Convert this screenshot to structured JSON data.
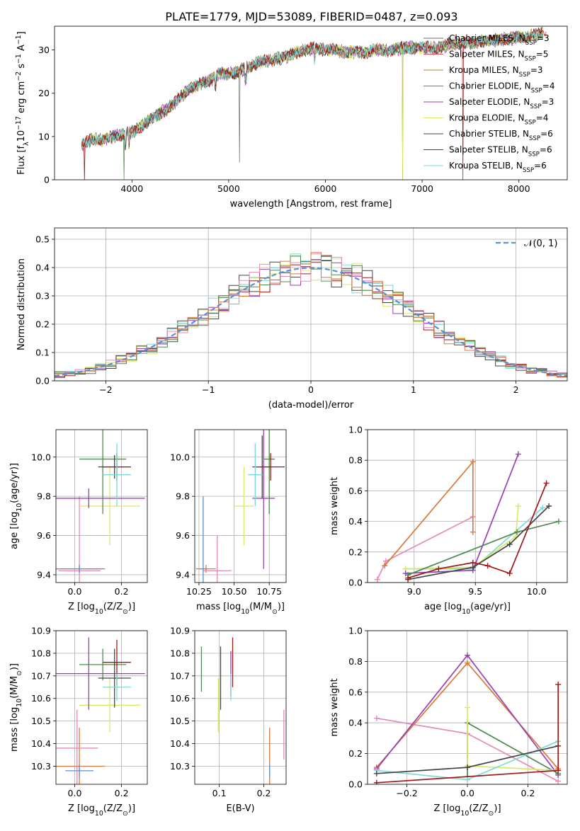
{
  "figure_title": "PLATE=1779, MJD=53089, FIBERID=0487, z=0.093",
  "models": [
    {
      "name": "Chabrier MILES, N$SSP$=3",
      "color": "#6a6a6a"
    },
    {
      "name": "Salpeter MILES, N$SSP$=5",
      "color": "#e0504a"
    },
    {
      "name": "Kroupa MILES, N$SSP$=3",
      "color": "#b08a30"
    },
    {
      "name": "Chabrier ELODIE, N$SSP$=4",
      "color": "#4f8a4f"
    },
    {
      "name": "Salpeter ELODIE, N$SSP$=3",
      "color": "#9a3fb5"
    },
    {
      "name": "Kroupa ELODIE, N$SSP$=4",
      "color": "#d8e86a"
    },
    {
      "name": "Chabrier STELIB, N$SSP$=6",
      "color": "#454545"
    },
    {
      "name": "Salpeter STELIB, N$SSP$=6",
      "color": "#a01818"
    },
    {
      "name": "Kroupa STELIB, N$SSP$=6",
      "color": "#7ed8d8"
    }
  ],
  "chart_data": [
    {
      "id": "spectrum",
      "type": "line",
      "xlabel": "wavelength [Angstrom, rest frame]",
      "ylabel": "Flux [f$λ$10$−17$ erg cm$−2$ s$−1$ A$−1$]",
      "xlim": [
        3200,
        8500
      ],
      "ylim": [
        0,
        35.5
      ],
      "xticks": [
        4000,
        5000,
        6000,
        7000,
        8000
      ],
      "yticks": [
        0,
        10,
        20,
        30
      ],
      "grid": false,
      "legend_position": "bottom-right",
      "anchors_x": [
        3480,
        3600,
        3700,
        3800,
        3900,
        4000,
        4100,
        4200,
        4300,
        4400,
        4500,
        4600,
        4700,
        4800,
        4900,
        5000,
        5100,
        5200,
        5300,
        5400,
        5500,
        5600,
        5700,
        5800,
        5900,
        6000,
        6100,
        6200,
        6300,
        6400,
        6500,
        6600,
        6700,
        6800,
        6900,
        7000,
        7100,
        7200,
        7300,
        7400,
        7500,
        7600,
        7700,
        7800,
        7900,
        8000,
        8100,
        8250
      ],
      "anchors_y": [
        8,
        9.5,
        9,
        10,
        10.5,
        11,
        12.5,
        14,
        15.5,
        17,
        19,
        21,
        22,
        23,
        24.5,
        24.5,
        25,
        26,
        27,
        27.5,
        28,
        28.5,
        29.5,
        30,
        30.5,
        30,
        30,
        29.5,
        29.5,
        29.5,
        30,
        30,
        30,
        30.5,
        30.5,
        30.5,
        30.5,
        30.5,
        31.5,
        31.5,
        31.5,
        32,
        32,
        32.5,
        32.5,
        33,
        33,
        34
      ],
      "dips_x": [
        3510,
        3920,
        6800,
        7420,
        5110
      ]
    },
    {
      "id": "residuals",
      "type": "histogram",
      "xlabel": "(data-model)/error",
      "ylabel": "Normed distribution",
      "xlim": [
        -2.5,
        2.5
      ],
      "ylim": [
        0,
        0.54
      ],
      "xticks": [
        -2,
        -1,
        0,
        1,
        2
      ],
      "yticks": [
        0,
        0.1,
        0.2,
        0.3,
        0.4,
        0.5
      ],
      "bin_width": 0.1,
      "grid": true,
      "legend_position": "top-right",
      "reference_curve": {
        "name": "𝒩(0, 1)",
        "color": "#5b8fd6"
      }
    },
    {
      "id": "age_vs_Z",
      "type": "errorbar",
      "xlabel": "Z [log$10$(Z/Z$⊙$)]",
      "ylabel": "age  [log$10$(age/yr)]",
      "xlim": [
        -0.08,
        0.31
      ],
      "ylim": [
        9.36,
        10.14
      ],
      "xticks": [
        0.0,
        0.2
      ],
      "yticks": [
        9.4,
        9.6,
        9.8,
        10.0
      ],
      "grid": true,
      "points": [
        {
          "x": 0.02,
          "xerr": 0.11,
          "y": 9.43,
          "yerr": 0.02,
          "color": "#d87a3a"
        },
        {
          "x": 0.02,
          "xerr": 0.09,
          "y": 9.42,
          "yerr": 0.38,
          "color": "#e58ab8"
        },
        {
          "x": 0.02,
          "xerr": 0.1,
          "y": 9.43,
          "yerr": 0.02,
          "color": "#5b8fd6"
        },
        {
          "x": 0.15,
          "xerr": 0.13,
          "y": 9.75,
          "yerr": 0.2,
          "color": "#d8e86a"
        },
        {
          "x": 0.06,
          "xerr": 0.24,
          "y": 9.79,
          "yerr": 0.05,
          "color": "#9a3fb5"
        },
        {
          "x": 0.12,
          "xerr": 0.1,
          "y": 9.99,
          "yerr": 0.28,
          "color": "#4f8a4f"
        },
        {
          "x": 0.17,
          "xerr": 0.07,
          "y": 9.95,
          "yerr": 0.06,
          "color": "#454545"
        },
        {
          "x": 0.18,
          "xerr": 0.06,
          "y": 9.95,
          "yerr": 0.07,
          "color": "#a01818"
        },
        {
          "x": 0.18,
          "xerr": 0.06,
          "y": 9.91,
          "yerr": 0.16,
          "color": "#7ed8d8"
        }
      ]
    },
    {
      "id": "age_vs_mass",
      "type": "errorbar",
      "xlabel": "mass [log$10$(M/M$⊙$)]",
      "ylabel": "",
      "xlim": [
        10.22,
        10.87
      ],
      "ylim": [
        9.36,
        10.14
      ],
      "xticks": [
        10.25,
        10.5,
        10.75
      ],
      "yticks": [
        9.4,
        9.6,
        9.8,
        10.0
      ],
      "grid": true,
      "points": [
        {
          "x": 10.3,
          "xerr": 0.07,
          "y": 9.43,
          "yerr": 0.02,
          "color": "#d87a3a"
        },
        {
          "x": 10.38,
          "xerr": 0.1,
          "y": 9.42,
          "yerr": 0.18,
          "color": "#e58ab8"
        },
        {
          "x": 10.28,
          "xerr": 0.03,
          "y": 9.43,
          "yerr": 0.37,
          "color": "#5b8fd6"
        },
        {
          "x": 10.57,
          "xerr": 0.07,
          "y": 9.75,
          "yerr": 0.2,
          "color": "#d8e86a"
        },
        {
          "x": 10.71,
          "xerr": 0.08,
          "y": 9.79,
          "yerr": 0.36,
          "color": "#9a3fb5"
        },
        {
          "x": 10.75,
          "xerr": 0.04,
          "y": 9.99,
          "yerr": 0.28,
          "color": "#4f8a4f"
        },
        {
          "x": 10.7,
          "xerr": 0.07,
          "y": 9.95,
          "yerr": 0.16,
          "color": "#454545"
        },
        {
          "x": 10.76,
          "xerr": 0.1,
          "y": 9.95,
          "yerr": 0.07,
          "color": "#a01818"
        },
        {
          "x": 10.65,
          "xerr": 0.05,
          "y": 9.91,
          "yerr": 0.16,
          "color": "#7ed8d8"
        }
      ]
    },
    {
      "id": "weight_vs_age",
      "type": "line",
      "xlabel": "age  [log$10$(age/yr)]",
      "ylabel": "mass weight",
      "xlim": [
        8.62,
        10.25
      ],
      "ylim": [
        0,
        1.0
      ],
      "xticks": [
        9.0,
        9.5,
        10.0
      ],
      "yticks": [
        0.0,
        0.2,
        0.4,
        0.6,
        0.8,
        1.0
      ],
      "grid": true,
      "series": [
        {
          "color": "#e58ab8",
          "x": [
            8.7,
            8.77,
            9.48
          ],
          "y": [
            0.02,
            0.14,
            0.43
          ]
        },
        {
          "color": "#d87a3a",
          "x": [
            8.76,
            9.48,
            9.48
          ],
          "y": [
            0.11,
            0.79,
            0.33
          ]
        },
        {
          "color": "#7ed8d8",
          "x": [
            8.93,
            9.48,
            10.05
          ],
          "y": [
            0.09,
            0.09,
            0.49
          ]
        },
        {
          "color": "#d8e86a",
          "x": [
            8.93,
            9.48,
            9.83,
            9.85
          ],
          "y": [
            0.09,
            0.1,
            0.3,
            0.5
          ]
        },
        {
          "color": "#9a3fb5",
          "x": [
            8.93,
            9.48,
            9.85
          ],
          "y": [
            0.06,
            0.08,
            0.84
          ]
        },
        {
          "color": "#4f8a4f",
          "x": [
            8.95,
            9.84,
            10.18
          ],
          "y": [
            0.05,
            0.33,
            0.4
          ]
        },
        {
          "color": "#454545",
          "x": [
            8.95,
            9.48,
            9.78,
            10.1
          ],
          "y": [
            0.02,
            0.1,
            0.25,
            0.5
          ]
        },
        {
          "color": "#a01818",
          "x": [
            8.95,
            9.2,
            9.48,
            9.6,
            9.78,
            10.08
          ],
          "y": [
            0.03,
            0.09,
            0.13,
            0.11,
            0.06,
            0.65
          ]
        }
      ]
    },
    {
      "id": "mass_vs_Z",
      "type": "errorbar",
      "xlabel": "Z [log$10$(Z/Z$⊙$)]",
      "ylabel": "mass [log$10$(M/M$⊙$)]",
      "xlim": [
        -0.08,
        0.31
      ],
      "ylim": [
        10.22,
        10.9
      ],
      "xticks": [
        0.0,
        0.2
      ],
      "yticks": [
        10.3,
        10.4,
        10.5,
        10.6,
        10.7,
        10.8,
        10.9
      ],
      "grid": true,
      "points": [
        {
          "x": 0.02,
          "xerr": 0.11,
          "y": 10.3,
          "yerr": 0.17,
          "color": "#d87a3a"
        },
        {
          "x": 0.01,
          "xerr": 0.09,
          "y": 10.38,
          "yerr": 0.17,
          "color": "#e58ab8"
        },
        {
          "x": 0.02,
          "xerr": 0.06,
          "y": 10.28,
          "yerr": 0.03,
          "color": "#5b8fd6"
        },
        {
          "x": 0.15,
          "xerr": 0.13,
          "y": 10.57,
          "yerr": 0.12,
          "color": "#d8e86a"
        },
        {
          "x": 0.06,
          "xerr": 0.24,
          "y": 10.71,
          "yerr": 0.16,
          "color": "#9a3fb5"
        },
        {
          "x": 0.12,
          "xerr": 0.1,
          "y": 10.75,
          "yerr": 0.07,
          "color": "#4f8a4f"
        },
        {
          "x": 0.17,
          "xerr": 0.07,
          "y": 10.69,
          "yerr": 0.13,
          "color": "#454545"
        },
        {
          "x": 0.18,
          "xerr": 0.06,
          "y": 10.76,
          "yerr": 0.1,
          "color": "#a01818"
        },
        {
          "x": 0.18,
          "xerr": 0.06,
          "y": 10.65,
          "yerr": 0.06,
          "color": "#7ed8d8"
        }
      ]
    },
    {
      "id": "mass_vs_EBV",
      "type": "errorbar",
      "xlabel": "E(B-V)",
      "ylabel": "",
      "xlim": [
        0.045,
        0.25
      ],
      "ylim": [
        10.22,
        10.9
      ],
      "xticks": [
        0.1,
        0.2
      ],
      "yticks": [
        10.3,
        10.4,
        10.5,
        10.6,
        10.7,
        10.8,
        10.9
      ],
      "grid": true,
      "points": [
        {
          "x": 0.213,
          "y": 10.3,
          "yerr": 0.17,
          "color": "#d87a3a"
        },
        {
          "x": 0.245,
          "y": 10.44,
          "yerr": 0.11,
          "color": "#e58ab8"
        },
        {
          "x": 0.213,
          "y": 10.28,
          "yerr": 0.03,
          "color": "#5b8fd6"
        },
        {
          "x": 0.098,
          "y": 10.57,
          "yerr": 0.12,
          "color": "#d8e86a"
        },
        {
          "x": 0.126,
          "y": 10.71,
          "yerr": 0.1,
          "color": "#9a3fb5"
        },
        {
          "x": 0.06,
          "y": 10.73,
          "yerr": 0.1,
          "color": "#4f8a4f"
        },
        {
          "x": 0.103,
          "y": 10.69,
          "yerr": 0.14,
          "color": "#454545"
        },
        {
          "x": 0.13,
          "y": 10.76,
          "yerr": 0.11,
          "color": "#a01818"
        },
        {
          "x": 0.126,
          "y": 10.65,
          "yerr": 0.06,
          "color": "#7ed8d8"
        }
      ]
    },
    {
      "id": "weight_vs_Z",
      "type": "line",
      "xlabel": "Z [log$10$(Z/Z$⊙$)]",
      "ylabel": "mass weight",
      "xlim": [
        -0.33,
        0.33
      ],
      "ylim": [
        0,
        1.0
      ],
      "xticks": [
        -0.2,
        0.0,
        0.2
      ],
      "yticks": [
        0.0,
        0.2,
        0.4,
        0.6,
        0.8,
        1.0
      ],
      "grid": true,
      "series": [
        {
          "color": "#e58ab8",
          "x": [
            -0.3,
            0.0,
            0.3
          ],
          "y": [
            0.43,
            0.33,
            0.02
          ]
        },
        {
          "color": "#d87a3a",
          "x": [
            -0.3,
            0.0,
            0.3
          ],
          "y": [
            0.11,
            0.79,
            0.1
          ]
        },
        {
          "color": "#9a3fb5",
          "x": [
            -0.3,
            0.0,
            0.3
          ],
          "y": [
            0.1,
            0.84,
            0.06
          ]
        },
        {
          "color": "#4f8a4f",
          "x": [
            0.0,
            0.0,
            0.3
          ],
          "y": [
            0.05,
            0.4,
            0.07
          ]
        },
        {
          "color": "#d8e86a",
          "x": [
            0.0,
            0.0,
            0.3
          ],
          "y": [
            0.5,
            0.12,
            0.09
          ]
        },
        {
          "color": "#7ed8d8",
          "x": [
            -0.3,
            0.0,
            0.3
          ],
          "y": [
            0.09,
            0.03,
            0.28
          ]
        },
        {
          "color": "#454545",
          "x": [
            -0.3,
            0.0,
            0.3
          ],
          "y": [
            0.07,
            0.11,
            0.25
          ]
        },
        {
          "color": "#a01818",
          "x": [
            -0.3,
            0.3,
            0.3
          ],
          "y": [
            0.01,
            0.09,
            0.65
          ]
        }
      ]
    }
  ]
}
